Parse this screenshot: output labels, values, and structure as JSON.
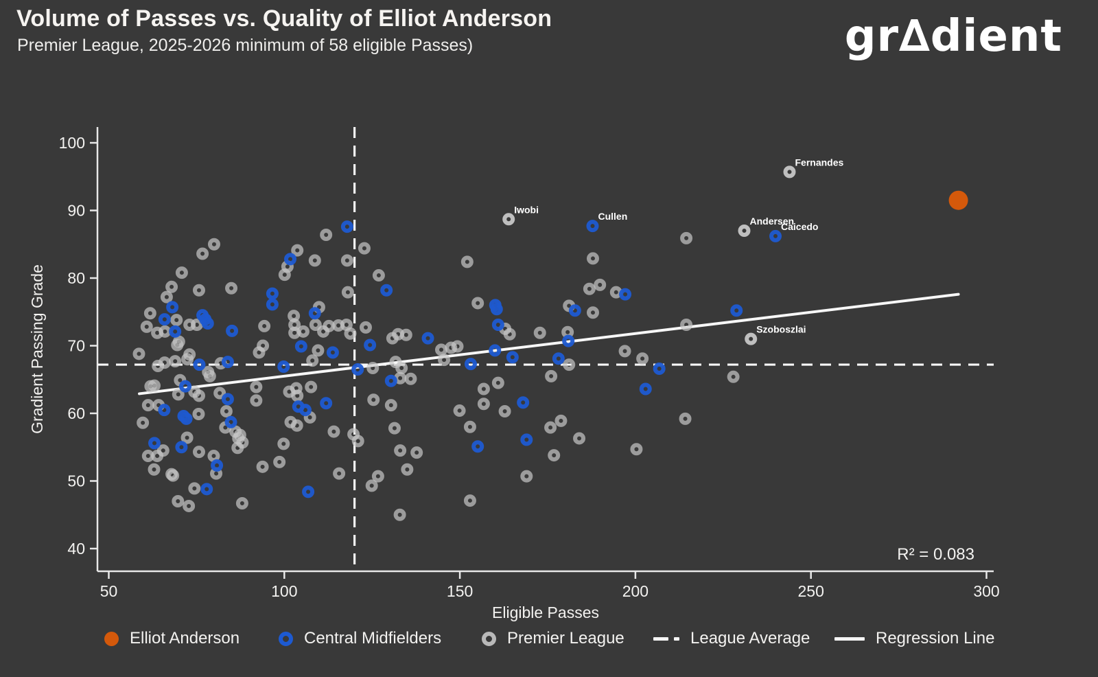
{
  "header": {
    "title": "Volume of Passes vs. Quality of Elliot Anderson",
    "subtitle": "Premier League, 2025-2026 minimum of 58 eligible Passes)",
    "logo": {
      "prefix": "gr",
      "delta": "∆",
      "suffix": "dient"
    }
  },
  "colors": {
    "background": "#393939",
    "orange": "#d4590b",
    "blue": "#1d5ad1",
    "gray": "#c6c6c6",
    "axis": "#e8e8e8",
    "white_line": "#f7f7f7",
    "text": "#f3f2f0"
  },
  "chart_data": {
    "type": "scatter",
    "title": "Volume of Passes vs. Quality of Elliot Anderson",
    "subtitle": "Premier League, 2025-2026 minimum of 58 eligible Passes)",
    "xlabel": "Eligible Passes",
    "ylabel": "Gradient Passing Grade",
    "xlim": [
      44,
      302
    ],
    "ylim": [
      37.5,
      102.5
    ],
    "x_ticks": [
      50,
      100,
      150,
      200,
      250,
      300
    ],
    "y_ticks": [
      40,
      50,
      60,
      70,
      80,
      90,
      100
    ],
    "grid": false,
    "r_squared_label": "R² = 0.083",
    "league_average": {
      "x": 120,
      "y": 67.2
    },
    "regression_line": {
      "x1": 58.7,
      "y1": 62.9,
      "x2": 292,
      "y2": 77.6
    },
    "series": {
      "elliot_anderson": {
        "name": "Elliot Anderson",
        "style": "filled",
        "points": [
          [
            292,
            91.5
          ]
        ]
      },
      "central_midfielders": {
        "name": "Central Midfielders",
        "style": "ring",
        "points": [
          [
            68.1,
            75.7
          ],
          [
            65.9,
            73.9
          ],
          [
            68.9,
            72.1
          ],
          [
            76.7,
            74.5
          ],
          [
            77.5,
            73.9
          ],
          [
            78.2,
            73.3
          ],
          [
            85.1,
            72.2
          ],
          [
            96.6,
            77.7
          ],
          [
            96.6,
            76.1
          ],
          [
            101.7,
            82.8
          ],
          [
            108.7,
            74.8
          ],
          [
            117.9,
            87.6
          ],
          [
            129.1,
            78.2
          ],
          [
            160.1,
            76
          ],
          [
            160.5,
            75.4
          ],
          [
            160.9,
            73.1
          ],
          [
            182.8,
            75.2
          ],
          [
            180.9,
            70.7
          ],
          [
            197.1,
            77.6
          ],
          [
            228.8,
            75.2
          ],
          [
            75.8,
            67.2
          ],
          [
            83.9,
            67.6
          ],
          [
            99.8,
            66.9
          ],
          [
            104.8,
            69.9
          ],
          [
            113.8,
            69
          ],
          [
            120.9,
            66.5
          ],
          [
            124.4,
            70.1
          ],
          [
            71.8,
            64
          ],
          [
            83.9,
            62.1
          ],
          [
            104,
            61
          ],
          [
            106,
            60.5
          ],
          [
            111.9,
            61.5
          ],
          [
            65.8,
            60.5
          ],
          [
            71.3,
            59.6
          ],
          [
            72.1,
            59.2
          ],
          [
            84.8,
            58.7
          ],
          [
            63,
            55.6
          ],
          [
            70.7,
            55
          ],
          [
            80.8,
            52.3
          ],
          [
            77.9,
            48.8
          ],
          [
            106.8,
            48.4
          ],
          [
            140.9,
            71.1
          ],
          [
            160,
            69.3
          ],
          [
            165,
            68.3
          ],
          [
            153.1,
            67.3
          ],
          [
            178.1,
            68.1
          ],
          [
            130.4,
            64.8
          ],
          [
            168,
            61.6
          ],
          [
            169,
            56.1
          ],
          [
            155.1,
            55.1
          ],
          [
            206.8,
            66.6
          ],
          [
            202.9,
            63.6
          ]
        ]
      },
      "premier_league": {
        "name": "Premier League",
        "style": "ring",
        "points": [
          [
            76.7,
            83.6
          ],
          [
            80,
            85
          ],
          [
            70.8,
            80.8
          ],
          [
            67.9,
            78.7
          ],
          [
            66.5,
            77.2
          ],
          [
            75.7,
            78.2
          ],
          [
            84.9,
            78.5
          ],
          [
            61.8,
            74.8
          ],
          [
            60.8,
            72.8
          ],
          [
            63.8,
            71.9
          ],
          [
            66,
            72.1
          ],
          [
            69.3,
            73.8
          ],
          [
            73,
            73.1
          ],
          [
            75.1,
            73.1
          ],
          [
            70,
            70.6
          ],
          [
            100.1,
            80.5
          ],
          [
            100.9,
            81.7
          ],
          [
            103.7,
            84.1
          ],
          [
            108.7,
            82.6
          ],
          [
            94.3,
            72.9
          ],
          [
            102.7,
            74.4
          ],
          [
            102.9,
            73.1
          ],
          [
            102.9,
            71.9
          ],
          [
            105.4,
            72.1
          ],
          [
            109.9,
            75.7
          ],
          [
            108.9,
            73.1
          ],
          [
            111.1,
            72.1
          ],
          [
            112.7,
            72.9
          ],
          [
            115.4,
            73
          ],
          [
            117.7,
            73.1
          ],
          [
            118.8,
            71.8
          ],
          [
            111.9,
            86.4
          ],
          [
            117.9,
            82.6
          ],
          [
            122.8,
            84.4
          ],
          [
            118.1,
            77.9
          ],
          [
            123.2,
            72.7
          ],
          [
            126.9,
            80.4
          ],
          [
            152.1,
            82.4
          ],
          [
            187.9,
            82.9
          ],
          [
            186.9,
            78.4
          ],
          [
            189.9,
            79
          ],
          [
            194.5,
            77.9
          ],
          [
            181.1,
            75.9
          ],
          [
            187.9,
            74.9
          ],
          [
            155.1,
            76.3
          ],
          [
            162.9,
            72.5
          ],
          [
            164.2,
            71.7
          ],
          [
            172.8,
            71.9
          ],
          [
            180.7,
            72
          ],
          [
            214.5,
            85.9
          ],
          [
            214.5,
            73.1
          ],
          [
            58.6,
            68.8
          ],
          [
            64,
            67
          ],
          [
            65.9,
            67.5
          ],
          [
            68.9,
            67.7
          ],
          [
            69.5,
            70.1
          ],
          [
            72.4,
            68
          ],
          [
            73,
            68.7
          ],
          [
            78.3,
            66.1
          ],
          [
            78.8,
            65.5
          ],
          [
            81.9,
            67.4
          ],
          [
            92.8,
            69
          ],
          [
            93.9,
            70
          ],
          [
            108,
            67.8
          ],
          [
            109.6,
            69.3
          ],
          [
            125.2,
            66.7
          ],
          [
            125.4,
            62
          ],
          [
            61.9,
            64
          ],
          [
            63,
            64.1
          ],
          [
            70.3,
            64.9
          ],
          [
            74.4,
            63.2
          ],
          [
            69.8,
            62.8
          ],
          [
            75.7,
            62.6
          ],
          [
            81.6,
            63
          ],
          [
            83.5,
            60.3
          ],
          [
            92,
            63.9
          ],
          [
            92,
            61.9
          ],
          [
            101.4,
            63.2
          ],
          [
            103.4,
            63.7
          ],
          [
            103.7,
            62.6
          ],
          [
            107.6,
            63.9
          ],
          [
            107.3,
            59.4
          ],
          [
            101.8,
            58.7
          ],
          [
            103.6,
            58.2
          ],
          [
            61.2,
            61.2
          ],
          [
            64.2,
            61.2
          ],
          [
            59.7,
            58.6
          ],
          [
            75.6,
            59.9
          ],
          [
            83.2,
            57.9
          ],
          [
            86.1,
            57.3
          ],
          [
            87.4,
            56.8
          ],
          [
            86.9,
            56.3
          ],
          [
            88.1,
            55.7
          ],
          [
            86.7,
            54.9
          ],
          [
            65.5,
            54.5
          ],
          [
            61.2,
            53.7
          ],
          [
            63.8,
            53.7
          ],
          [
            72.3,
            56.4
          ],
          [
            75.7,
            54.3
          ],
          [
            79.9,
            53.7
          ],
          [
            80.6,
            51.1
          ],
          [
            62.9,
            51.7
          ],
          [
            67.9,
            51
          ],
          [
            68.3,
            50.8
          ],
          [
            74.4,
            48.9
          ],
          [
            69.7,
            47
          ],
          [
            72.8,
            46.3
          ],
          [
            88,
            46.7
          ],
          [
            99.8,
            55.5
          ],
          [
            98.6,
            52.8
          ],
          [
            93.8,
            52.1
          ],
          [
            115.6,
            51.1
          ],
          [
            119.7,
            56.9
          ],
          [
            121,
            55.9
          ],
          [
            114.1,
            57.3
          ],
          [
            126.7,
            50.7
          ],
          [
            124.9,
            49.3
          ],
          [
            144.7,
            69.4
          ],
          [
            147.5,
            69.7
          ],
          [
            149.3,
            69.9
          ],
          [
            145.5,
            67.9
          ],
          [
            181.1,
            67.2
          ],
          [
            176,
            65.5
          ],
          [
            131.7,
            67.6
          ],
          [
            133.4,
            66.7
          ],
          [
            136,
            65.1
          ],
          [
            133,
            65.2
          ],
          [
            130.4,
            61.2
          ],
          [
            156.8,
            63.6
          ],
          [
            160.9,
            64.5
          ],
          [
            156.8,
            61.4
          ],
          [
            149.9,
            60.4
          ],
          [
            162.8,
            60.3
          ],
          [
            152.9,
            58
          ],
          [
            131.4,
            57.8
          ],
          [
            175.8,
            57.9
          ],
          [
            178.8,
            58.9
          ],
          [
            184,
            56.3
          ],
          [
            176.8,
            53.8
          ],
          [
            133,
            54.5
          ],
          [
            137.7,
            54.2
          ],
          [
            135,
            51.7
          ],
          [
            169,
            50.7
          ],
          [
            152.9,
            47.1
          ],
          [
            132.9,
            45
          ],
          [
            197,
            69.2
          ],
          [
            202,
            68.1
          ],
          [
            200.3,
            54.7
          ],
          [
            214.2,
            59.2
          ],
          [
            227.9,
            65.4
          ],
          [
            130.8,
            71.1
          ],
          [
            132.4,
            71.7
          ],
          [
            134.7,
            71.6
          ]
        ]
      }
    },
    "labeled_points": [
      {
        "name": "Fernandes",
        "series": "premier_league",
        "x": 243.9,
        "y": 95.7
      },
      {
        "name": "Iwobi",
        "series": "premier_league",
        "x": 163.9,
        "y": 88.7
      },
      {
        "name": "Cullen",
        "series": "central_midfielders",
        "x": 187.8,
        "y": 87.7
      },
      {
        "name": "Andersen",
        "series": "premier_league",
        "x": 231,
        "y": 87
      },
      {
        "name": "Caicedo",
        "series": "central_midfielders",
        "x": 239.9,
        "y": 86.2
      },
      {
        "name": "Szoboszlai",
        "series": "premier_league",
        "x": 232.9,
        "y": 71
      }
    ]
  },
  "legend": {
    "items": [
      {
        "label": "Elliot Anderson",
        "marker": "orange-dot"
      },
      {
        "label": "Central Midfielders",
        "marker": "blue-ring"
      },
      {
        "label": "Premier League",
        "marker": "gray-ring"
      },
      {
        "label": "League Average",
        "marker": "dashed-line"
      },
      {
        "label": "Regression Line",
        "marker": "solid-line"
      }
    ]
  }
}
